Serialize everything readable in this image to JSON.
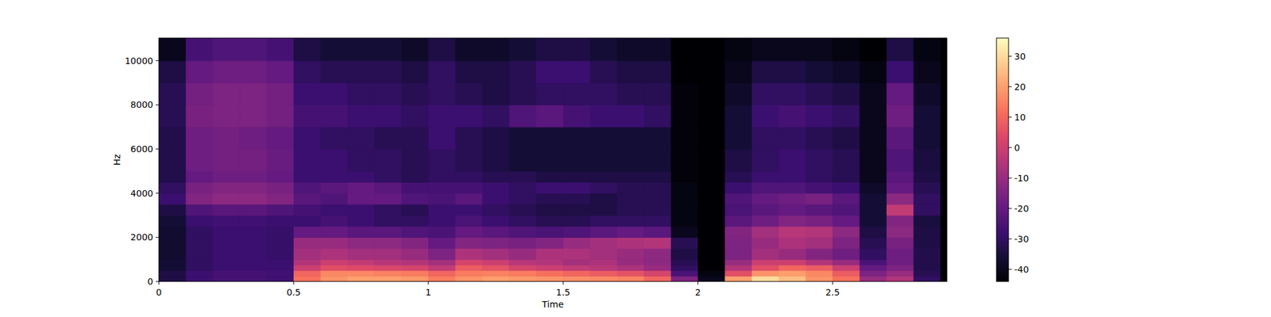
{
  "chart_data": {
    "type": "heatmap",
    "x_label": "Time",
    "y_label": "Hz",
    "xlim": [
      0,
      2.924
    ],
    "ylim": [
      0,
      11025
    ],
    "xticks": [
      0,
      0.5,
      1,
      1.5,
      2,
      2.5
    ],
    "yticks": [
      0,
      2000,
      4000,
      6000,
      8000,
      10000
    ],
    "x_edges": [
      0,
      0.1,
      0.2,
      0.3,
      0.4,
      0.5,
      0.6,
      0.7,
      0.8,
      0.9,
      1.0,
      1.1,
      1.2,
      1.3,
      1.4,
      1.5,
      1.6,
      1.7,
      1.8,
      1.9,
      2.0,
      2.1,
      2.2,
      2.3,
      2.4,
      2.5,
      2.6,
      2.7,
      2.8,
      2.9,
      2.924
    ],
    "y_edges": [
      0,
      250,
      500,
      750,
      1000,
      1500,
      2000,
      2500,
      3000,
      3500,
      4000,
      4500,
      5000,
      6000,
      7000,
      8000,
      9000,
      10000,
      11025
    ],
    "values": [
      [
        -34,
        -28,
        -26,
        -26,
        -27,
        12,
        18,
        20,
        20,
        19,
        14,
        18,
        20,
        19,
        18,
        17,
        16,
        15,
        10,
        -15,
        -40,
        20,
        30,
        25,
        18,
        12,
        -10,
        -5,
        -30,
        -44
      ],
      [
        -34,
        -28,
        -26,
        -26,
        -27,
        10,
        16,
        16,
        15,
        14,
        10,
        14,
        15,
        14,
        12,
        10,
        8,
        6,
        2,
        -25,
        -42,
        5,
        18,
        20,
        16,
        8,
        -15,
        -10,
        -32,
        -44
      ],
      [
        -36,
        -30,
        -28,
        -28,
        -28,
        0,
        5,
        4,
        3,
        2,
        -2,
        8,
        6,
        2,
        0,
        -2,
        -4,
        -6,
        -10,
        -30,
        -44,
        -5,
        5,
        10,
        8,
        0,
        -20,
        -15,
        -33,
        -44
      ],
      [
        -36,
        -30,
        -28,
        -28,
        -28,
        -5,
        0,
        -2,
        -4,
        -5,
        -8,
        2,
        0,
        -4,
        -5,
        -8,
        -6,
        -10,
        -12,
        -32,
        -44,
        -10,
        0,
        0,
        -5,
        -10,
        -25,
        -18,
        -33,
        -44
      ],
      [
        -37,
        -30,
        -28,
        -28,
        -29,
        -8,
        -6,
        -8,
        -8,
        -10,
        -15,
        -6,
        -8,
        -10,
        -6,
        -6,
        -8,
        -10,
        -12,
        -34,
        -44,
        -15,
        -8,
        -10,
        -14,
        -18,
        -30,
        -18,
        -33,
        -44
      ],
      [
        -37,
        -30,
        -28,
        -28,
        -29,
        -10,
        -10,
        -12,
        -12,
        -14,
        -20,
        -14,
        -15,
        -16,
        -14,
        -10,
        -8,
        -6,
        -5,
        -32,
        -44,
        -15,
        -10,
        -6,
        -8,
        -15,
        -32,
        -16,
        -34,
        -44
      ],
      [
        -37,
        -30,
        -28,
        -28,
        -29,
        -20,
        -20,
        -22,
        -22,
        -24,
        -25,
        -20,
        -22,
        -24,
        -25,
        -24,
        -22,
        -20,
        -22,
        -40,
        -44,
        -14,
        -8,
        -4,
        -5,
        -12,
        -34,
        -12,
        -34,
        -44
      ],
      [
        -36,
        -28,
        -27,
        -27,
        -28,
        -28,
        -26,
        -28,
        -30,
        -30,
        -28,
        -25,
        -28,
        -30,
        -32,
        -32,
        -30,
        -30,
        -30,
        -42,
        -44,
        -22,
        -18,
        -14,
        -16,
        -20,
        -36,
        -14,
        -35,
        -44
      ],
      [
        -34,
        -24,
        -22,
        -22,
        -24,
        -26,
        -28,
        -28,
        -30,
        -32,
        -28,
        -28,
        -30,
        -32,
        -34,
        -34,
        -34,
        -32,
        -32,
        -42,
        -44,
        -25,
        -22,
        -20,
        -22,
        -24,
        -36,
        -2,
        -30,
        -44
      ],
      [
        -28,
        -14,
        -12,
        -12,
        -14,
        -22,
        -24,
        -20,
        -20,
        -24,
        -25,
        -22,
        -28,
        -30,
        -32,
        -32,
        -34,
        -32,
        -32,
        -42,
        -44,
        -24,
        -20,
        -18,
        -16,
        -22,
        -36,
        -12,
        -30,
        -44
      ],
      [
        -30,
        -16,
        -14,
        -14,
        -16,
        -24,
        -22,
        -20,
        -22,
        -26,
        -26,
        -26,
        -28,
        -30,
        -28,
        -28,
        -30,
        -32,
        -32,
        -42,
        -44,
        -28,
        -24,
        -24,
        -26,
        -28,
        -38,
        -20,
        -32,
        -44
      ],
      [
        -33,
        -20,
        -18,
        -18,
        -20,
        -28,
        -28,
        -28,
        -30,
        -32,
        -30,
        -30,
        -32,
        -32,
        -34,
        -34,
        -34,
        -34,
        -34,
        -43,
        -44,
        -32,
        -28,
        -28,
        -30,
        -32,
        -40,
        -22,
        -34,
        -44
      ],
      [
        -33,
        -18,
        -17,
        -17,
        -19,
        -28,
        -28,
        -30,
        -30,
        -32,
        -30,
        -32,
        -34,
        -36,
        -36,
        -36,
        -36,
        -36,
        -36,
        -43,
        -44,
        -34,
        -30,
        -28,
        -30,
        -32,
        -40,
        -24,
        -35,
        -44
      ],
      [
        -33,
        -18,
        -17,
        -18,
        -20,
        -28,
        -30,
        -30,
        -32,
        -32,
        -28,
        -32,
        -34,
        -36,
        -36,
        -36,
        -36,
        -36,
        -36,
        -43,
        -44,
        -36,
        -30,
        -30,
        -32,
        -34,
        -40,
        -22,
        -36,
        -44
      ],
      [
        -32,
        -16,
        -15,
        -15,
        -17,
        -26,
        -26,
        -28,
        -28,
        -30,
        -28,
        -28,
        -30,
        -24,
        -22,
        -26,
        -28,
        -28,
        -30,
        -43,
        -44,
        -36,
        -28,
        -26,
        -28,
        -30,
        -40,
        -18,
        -36,
        -44
      ],
      [
        -32,
        -17,
        -15,
        -15,
        -17,
        -28,
        -28,
        -30,
        -30,
        -32,
        -30,
        -32,
        -34,
        -32,
        -30,
        -30,
        -30,
        -32,
        -32,
        -43,
        -44,
        -38,
        -30,
        -30,
        -32,
        -34,
        -40,
        -20,
        -38,
        -44
      ],
      [
        -34,
        -20,
        -18,
        -18,
        -20,
        -30,
        -32,
        -32,
        -32,
        -34,
        -30,
        -34,
        -34,
        -32,
        -28,
        -28,
        -32,
        -34,
        -34,
        -44,
        -44,
        -40,
        -34,
        -34,
        -36,
        -38,
        -42,
        -28,
        -40,
        -44
      ],
      [
        -40,
        -26,
        -24,
        -24,
        -26,
        -34,
        -36,
        -36,
        -36,
        -38,
        -34,
        -38,
        -38,
        -36,
        -34,
        -34,
        -36,
        -38,
        -38,
        -44,
        -44,
        -42,
        -40,
        -40,
        -40,
        -42,
        -44,
        -34,
        -42,
        -44
      ]
    ],
    "colorbar": {
      "range": [
        -44,
        36
      ],
      "ticks": [
        -40,
        -30,
        -20,
        -10,
        0,
        10,
        20,
        30
      ]
    }
  }
}
